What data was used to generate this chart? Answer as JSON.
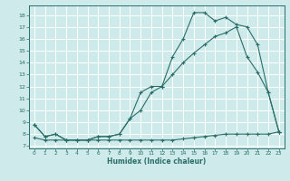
{
  "xlabel": "Humidex (Indice chaleur)",
  "bg_color": "#ceeaea",
  "grid_color": "#b0d8d8",
  "line_color": "#2a6e68",
  "xlim": [
    -0.5,
    23.5
  ],
  "ylim": [
    6.8,
    18.8
  ],
  "yticks": [
    7,
    8,
    9,
    10,
    11,
    12,
    13,
    14,
    15,
    16,
    17,
    18
  ],
  "xticks": [
    0,
    1,
    2,
    3,
    4,
    5,
    6,
    7,
    8,
    9,
    10,
    11,
    12,
    13,
    14,
    15,
    16,
    17,
    18,
    19,
    20,
    21,
    22,
    23
  ],
  "curve_upper_x": [
    0,
    1,
    2,
    3,
    4,
    5,
    6,
    7,
    8,
    9,
    10,
    11,
    12,
    13,
    14,
    15,
    16,
    17,
    18,
    19,
    20,
    21,
    22,
    23
  ],
  "curve_upper_y": [
    8.8,
    7.8,
    8.0,
    7.5,
    7.5,
    7.5,
    7.8,
    7.8,
    8.0,
    9.3,
    11.5,
    12.0,
    12.0,
    14.5,
    16.0,
    18.2,
    18.2,
    17.5,
    17.8,
    17.2,
    17.0,
    15.5,
    11.5,
    8.2
  ],
  "curve_mid_x": [
    0,
    1,
    2,
    3,
    4,
    5,
    6,
    7,
    8,
    9,
    10,
    11,
    12,
    13,
    14,
    15,
    16,
    17,
    18,
    19,
    20,
    21,
    22,
    23
  ],
  "curve_mid_y": [
    8.8,
    7.8,
    8.0,
    7.5,
    7.5,
    7.5,
    7.8,
    7.8,
    8.0,
    9.3,
    10.0,
    11.5,
    12.0,
    13.0,
    14.0,
    14.8,
    15.5,
    16.2,
    16.5,
    17.0,
    14.5,
    13.2,
    11.5,
    8.2
  ],
  "curve_low_x": [
    0,
    1,
    2,
    3,
    4,
    5,
    6,
    7,
    8,
    9,
    10,
    11,
    12,
    13,
    14,
    15,
    16,
    17,
    18,
    19,
    20,
    21,
    22,
    23
  ],
  "curve_low_y": [
    7.7,
    7.5,
    7.5,
    7.5,
    7.5,
    7.5,
    7.5,
    7.5,
    7.5,
    7.5,
    7.5,
    7.5,
    7.5,
    7.5,
    7.6,
    7.7,
    7.8,
    7.9,
    8.0,
    8.0,
    8.0,
    8.0,
    8.0,
    8.2
  ]
}
